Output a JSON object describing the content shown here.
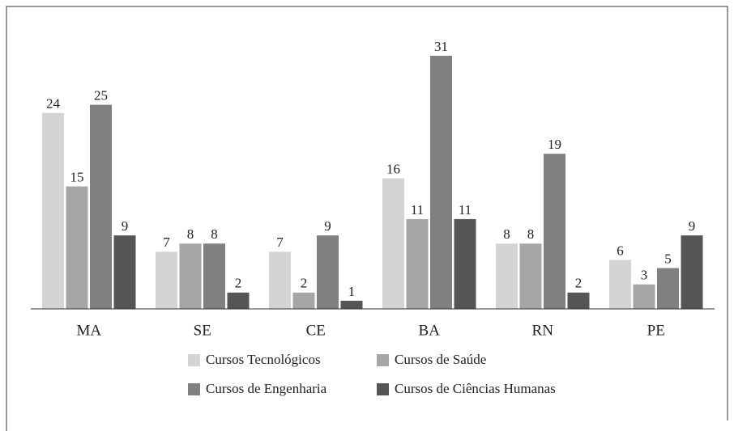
{
  "chart_data": {
    "type": "bar",
    "categories": [
      "MA",
      "SE",
      "CE",
      "BA",
      "RN",
      "PE"
    ],
    "series": [
      {
        "name": "Cursos Tecnológicos",
        "color": "#d4d4d4",
        "values": [
          24,
          7,
          7,
          16,
          8,
          6
        ]
      },
      {
        "name": "Cursos de Saúde",
        "color": "#a6a6a6",
        "values": [
          15,
          8,
          2,
          11,
          8,
          3
        ]
      },
      {
        "name": "Cursos de Engenharia",
        "color": "#808080",
        "values": [
          25,
          8,
          9,
          31,
          19,
          5
        ]
      },
      {
        "name": "Cursos de Ciências Humanas",
        "color": "#555555",
        "values": [
          9,
          2,
          1,
          11,
          2,
          9
        ]
      }
    ]
  }
}
